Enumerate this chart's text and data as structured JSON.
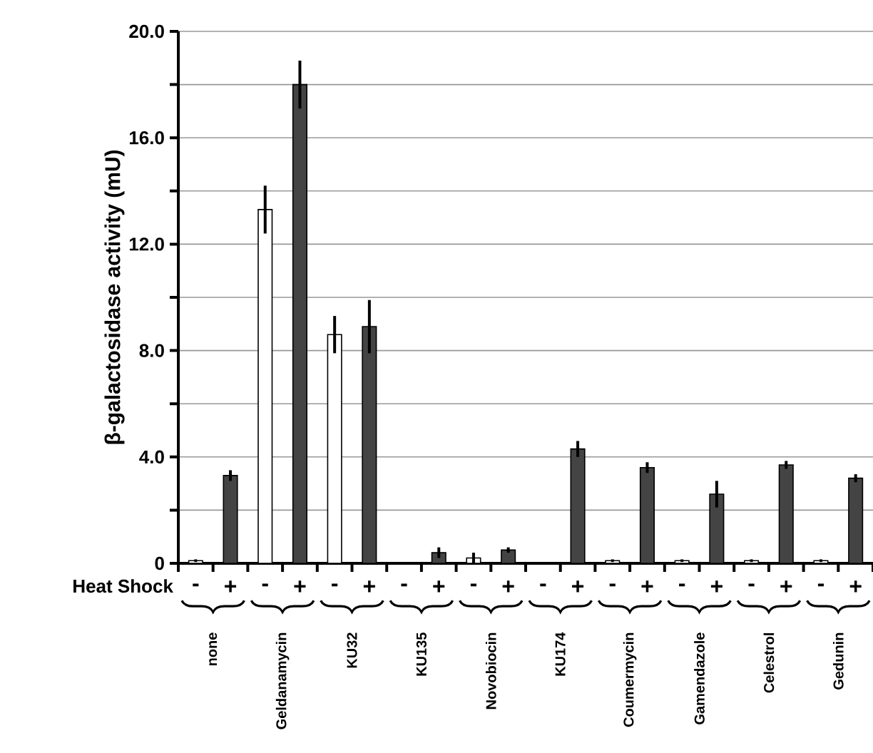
{
  "chart_data": {
    "type": "bar",
    "ylabel": "β-galactosidase activity (mU)",
    "legend_title": "Heat Shock",
    "categories": [
      "none",
      "Geldanamycin",
      "KU32",
      "KU135",
      "Novobiocin",
      "KU174",
      "Coumermycin",
      "Gamendazole",
      "Celestrol",
      "Gedunin"
    ],
    "series": [
      {
        "name": "-",
        "color": "#ffffff",
        "values": [
          0.1,
          13.3,
          8.6,
          null,
          0.2,
          null,
          0.1,
          0.1,
          0.1,
          0.1
        ],
        "errors": [
          0.05,
          0.9,
          0.7,
          null,
          0.2,
          null,
          0.05,
          0.05,
          0.05,
          0.05
        ]
      },
      {
        "name": "+",
        "color": "#444444",
        "values": [
          3.3,
          18.0,
          8.9,
          0.4,
          0.5,
          4.3,
          3.6,
          2.6,
          3.7,
          3.2
        ],
        "errors": [
          0.2,
          0.9,
          1.0,
          0.2,
          0.1,
          0.3,
          0.2,
          0.5,
          0.15,
          0.15
        ]
      }
    ],
    "ylim": [
      0,
      20
    ],
    "yticks": [
      0,
      {
        "value": 2,
        "label": null
      },
      {
        "value": 4,
        "label": "4.0"
      },
      {
        "value": 6,
        "label": null
      },
      {
        "value": 8,
        "label": "8.0"
      },
      {
        "value": 10,
        "label": null
      },
      {
        "value": 12,
        "label": "12.0"
      },
      {
        "value": 14,
        "label": null
      },
      {
        "value": 16,
        "label": "16.0"
      },
      {
        "value": 18,
        "label": null
      },
      {
        "value": 20,
        "label": "20.0"
      }
    ],
    "grid": "y",
    "legend": "bottom"
  }
}
